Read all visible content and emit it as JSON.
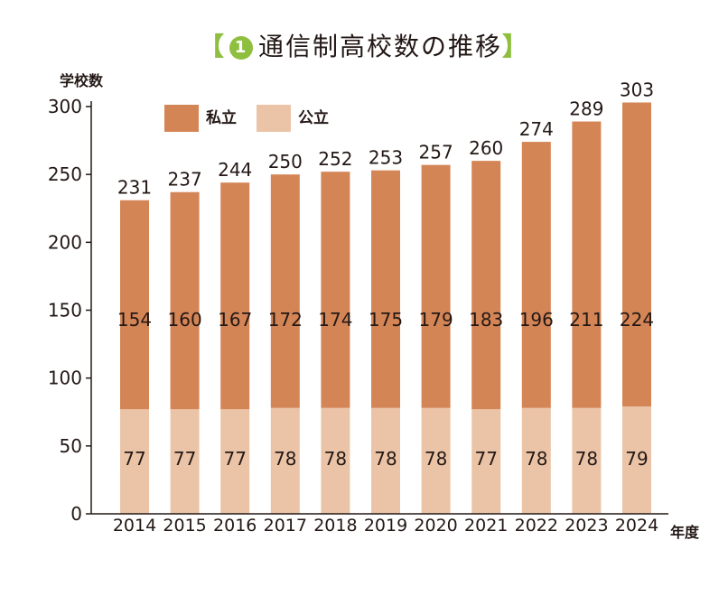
{
  "header": {
    "bracket_open": "【",
    "number": "1",
    "title": "通信制高校数の推移",
    "bracket_close": "】"
  },
  "colors": {
    "private": "#d48556",
    "public": "#ebc4a7",
    "accent": "#8fbf3f",
    "axis": "#231815"
  },
  "chart_data": {
    "type": "bar",
    "stacked": true,
    "title": "通信制高校数の推移",
    "ylabel": "学校数",
    "xlabel": "年度",
    "ylim": [
      0,
      300
    ],
    "yticks": [
      0,
      50,
      100,
      150,
      200,
      250,
      300
    ],
    "grid": false,
    "legend_position": "top-left",
    "categories": [
      "2014",
      "2015",
      "2016",
      "2017",
      "2018",
      "2019",
      "2020",
      "2021",
      "2022",
      "2023",
      "2024"
    ],
    "series": [
      {
        "name": "公立",
        "values": [
          77,
          77,
          77,
          78,
          78,
          78,
          78,
          77,
          78,
          78,
          79
        ]
      },
      {
        "name": "私立",
        "values": [
          154,
          160,
          167,
          172,
          174,
          175,
          179,
          183,
          196,
          211,
          224
        ]
      }
    ],
    "totals": [
      231,
      237,
      244,
      250,
      252,
      253,
      257,
      260,
      274,
      289,
      303
    ]
  }
}
